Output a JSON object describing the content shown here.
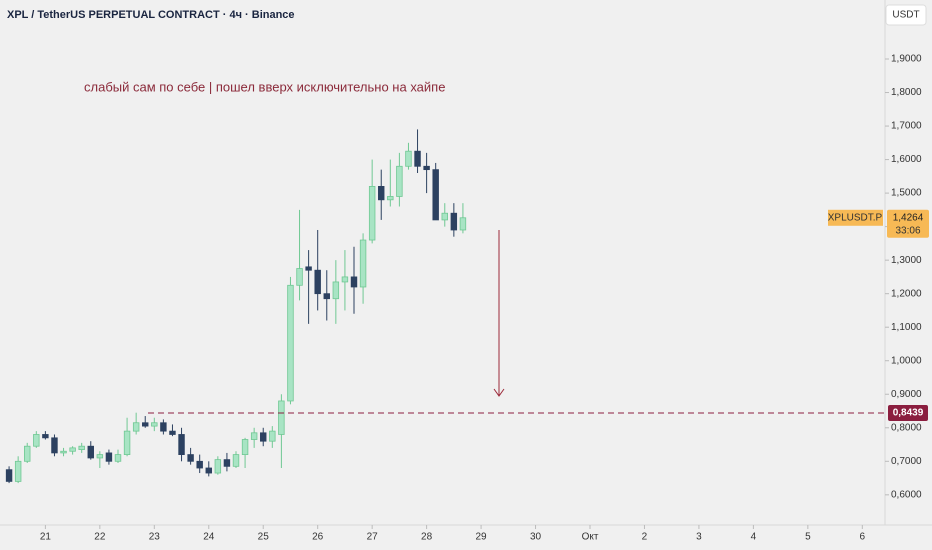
{
  "chart_data": {
    "type": "candlestick",
    "title": "XPL / TetherUS PERPETUAL CONTRACT · 4ч · Binance",
    "currency_button": "USDT",
    "annotation": "слабый сам по себе | пошел вверх исключительно на хайпе",
    "up_color": "#a8e4c4",
    "up_border": "#6fc893",
    "down_color": "#2c4160",
    "x": [
      0,
      1,
      2,
      3,
      4,
      5,
      6,
      7,
      8,
      9,
      10,
      11,
      12,
      13,
      14,
      15,
      16,
      17,
      18,
      19,
      20,
      21,
      22,
      23,
      24,
      25,
      26,
      27,
      28,
      29,
      30,
      31,
      32,
      33,
      34,
      35,
      36,
      37,
      38,
      39,
      40,
      41,
      42,
      43,
      44,
      45,
      46,
      47,
      48,
      49,
      50
    ],
    "open": [
      0.675,
      0.64,
      0.7,
      0.745,
      0.78,
      0.77,
      0.725,
      0.73,
      0.735,
      0.745,
      0.71,
      0.725,
      0.7,
      0.72,
      0.79,
      0.815,
      0.805,
      0.815,
      0.79,
      0.78,
      0.72,
      0.7,
      0.68,
      0.665,
      0.705,
      0.685,
      0.72,
      0.765,
      0.785,
      0.76,
      0.78,
      0.88,
      1.225,
      1.28,
      1.27,
      1.2,
      1.185,
      1.235,
      1.25,
      1.22,
      1.36,
      1.52,
      1.48,
      1.49,
      1.58,
      1.625,
      1.58,
      1.57,
      1.42,
      1.44,
      1.39
    ],
    "high": [
      0.685,
      0.715,
      0.755,
      0.79,
      0.79,
      0.78,
      0.74,
      0.745,
      0.755,
      0.76,
      0.73,
      0.735,
      0.735,
      0.83,
      0.845,
      0.835,
      0.83,
      0.825,
      0.81,
      0.8,
      0.74,
      0.72,
      0.7,
      0.715,
      0.725,
      0.73,
      0.77,
      0.8,
      0.8,
      0.805,
      0.9,
      1.25,
      1.45,
      1.33,
      1.39,
      1.27,
      1.3,
      1.33,
      1.34,
      1.38,
      1.6,
      1.57,
      1.6,
      1.62,
      1.65,
      1.69,
      1.62,
      1.59,
      1.47,
      1.47,
      1.47
    ],
    "low": [
      0.635,
      0.635,
      0.695,
      0.74,
      0.765,
      0.715,
      0.715,
      0.72,
      0.725,
      0.705,
      0.68,
      0.69,
      0.695,
      0.715,
      0.78,
      0.8,
      0.79,
      0.78,
      0.775,
      0.7,
      0.69,
      0.665,
      0.655,
      0.66,
      0.67,
      0.68,
      0.68,
      0.74,
      0.745,
      0.74,
      0.68,
      0.87,
      1.18,
      1.11,
      1.15,
      1.12,
      1.11,
      1.15,
      1.14,
      1.17,
      1.35,
      1.42,
      1.46,
      1.46,
      1.57,
      1.56,
      1.5,
      1.42,
      1.4,
      1.37,
      1.38
    ],
    "close": [
      0.64,
      0.7,
      0.745,
      0.78,
      0.77,
      0.725,
      0.73,
      0.74,
      0.745,
      0.71,
      0.72,
      0.7,
      0.72,
      0.79,
      0.815,
      0.805,
      0.815,
      0.79,
      0.78,
      0.72,
      0.7,
      0.68,
      0.665,
      0.705,
      0.685,
      0.72,
      0.765,
      0.785,
      0.76,
      0.79,
      0.88,
      1.225,
      1.275,
      1.27,
      1.2,
      1.185,
      1.235,
      1.25,
      1.22,
      1.36,
      1.52,
      1.48,
      1.49,
      1.58,
      1.625,
      1.58,
      1.57,
      1.42,
      1.44,
      1.39,
      1.4264
    ],
    "xlim": [
      -1,
      96.5
    ],
    "ylim": [
      0.51,
      2.076
    ],
    "xticks": [
      {
        "value": 4,
        "label": "21"
      },
      {
        "value": 10,
        "label": "22"
      },
      {
        "value": 16,
        "label": "23"
      },
      {
        "value": 22,
        "label": "24"
      },
      {
        "value": 28,
        "label": "25"
      },
      {
        "value": 34,
        "label": "26"
      },
      {
        "value": 40,
        "label": "27"
      },
      {
        "value": 46,
        "label": "28"
      },
      {
        "value": 52,
        "label": "29"
      },
      {
        "value": 58,
        "label": "30"
      },
      {
        "value": 64,
        "label": "Окт"
      },
      {
        "value": 70,
        "label": "2"
      },
      {
        "value": 76,
        "label": "3"
      },
      {
        "value": 82,
        "label": "4"
      },
      {
        "value": 88,
        "label": "5"
      },
      {
        "value": 94,
        "label": "6"
      }
    ],
    "yticks": [
      {
        "value": 0.6,
        "label": "0,6000"
      },
      {
        "value": 0.7,
        "label": "0,7000"
      },
      {
        "value": 0.8,
        "label": "0,8000"
      },
      {
        "value": 0.9,
        "label": "0,9000"
      },
      {
        "value": 1.0,
        "label": "1,0000"
      },
      {
        "value": 1.1,
        "label": "1,1000"
      },
      {
        "value": 1.2,
        "label": "1,2000"
      },
      {
        "value": 1.3,
        "label": "1,3000"
      },
      {
        "value": 1.4,
        "label": "1,4000"
      },
      {
        "value": 1.5,
        "label": "1,5000"
      },
      {
        "value": 1.6,
        "label": "1,6000"
      },
      {
        "value": 1.7,
        "label": "1,7000"
      },
      {
        "value": 1.8,
        "label": "1,8000"
      },
      {
        "value": 1.9,
        "label": "1,9000"
      }
    ],
    "level": {
      "value": 0.8439,
      "label": "0,8439",
      "color": "#8b1e3f"
    },
    "last_price": {
      "value": 1.4264,
      "label": "1,4264",
      "symbol": "XPLUSDT.P",
      "countdown": "33:06",
      "color": "#f7b955"
    }
  }
}
